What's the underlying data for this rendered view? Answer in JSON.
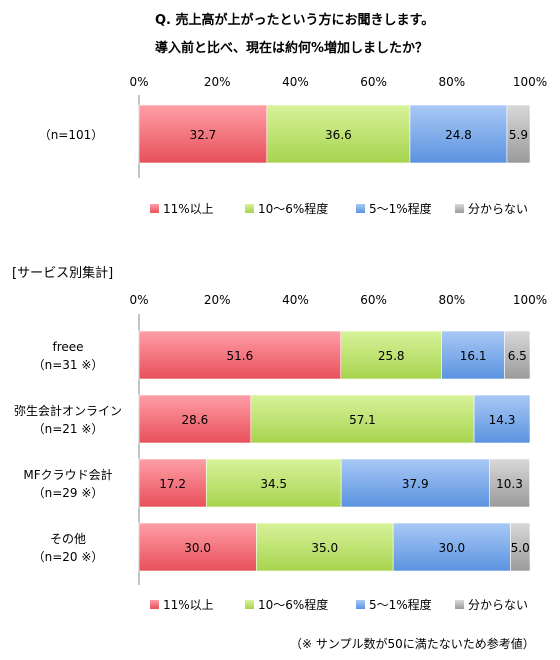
{
  "header": {
    "title_line1": "Q. 売上高が上がったという方にお聞きします。",
    "title_line2": "導入前と比べ、現在は約何%増加しましたか？"
  },
  "colors": {
    "c11": "#e8505b",
    "c10": "#a6d44e",
    "c5": "#5b93e0",
    "cunk": "#a3a3a3"
  },
  "chart_data": [
    {
      "type": "bar",
      "orientation": "horizontal",
      "stacked": true,
      "xlim": [
        0,
        100
      ],
      "x_ticks": [
        "0%",
        "20%",
        "40%",
        "60%",
        "80%",
        "100%"
      ],
      "grid": false,
      "legend_position": "bottom",
      "categories": [
        "（n=101）"
      ],
      "series": [
        {
          "name": "11%以上",
          "values": [
            32.7
          ]
        },
        {
          "name": "10～6%程度",
          "values": [
            36.6
          ]
        },
        {
          "name": "5～1%程度",
          "values": [
            24.8
          ]
        },
        {
          "name": "分からない",
          "values": [
            5.9
          ]
        }
      ],
      "value_labels": [
        [
          "32.7",
          "36.6",
          "24.8",
          "5.9"
        ]
      ]
    },
    {
      "type": "bar",
      "orientation": "horizontal",
      "stacked": true,
      "title": "[サービス別集計]",
      "xlim": [
        0,
        100
      ],
      "x_ticks": [
        "0%",
        "20%",
        "40%",
        "60%",
        "80%",
        "100%"
      ],
      "grid": false,
      "legend_position": "bottom",
      "categories": [
        {
          "line1": "freee",
          "line2": "（n=31 ※）"
        },
        {
          "line1": "弥生会計オンライン",
          "line2": "（n=21 ※）"
        },
        {
          "line1": "MFクラウド会計",
          "line2": "（n=29 ※）"
        },
        {
          "line1": "その他",
          "line2": "（n=20 ※）"
        }
      ],
      "series": [
        {
          "name": "11%以上",
          "values": [
            51.6,
            28.6,
            17.2,
            30.0
          ]
        },
        {
          "name": "10～6%程度",
          "values": [
            25.8,
            57.1,
            34.5,
            35.0
          ]
        },
        {
          "name": "5～1%程度",
          "values": [
            16.1,
            14.3,
            37.9,
            30.0
          ]
        },
        {
          "name": "分からない",
          "values": [
            6.5,
            0,
            10.3,
            5.0
          ]
        }
      ],
      "value_labels": [
        [
          "51.6",
          "25.8",
          "16.1",
          "6.5"
        ],
        [
          "28.6",
          "57.1",
          "14.3",
          ""
        ],
        [
          "17.2",
          "34.5",
          "37.9",
          "10.3"
        ],
        [
          "30.0",
          "35.0",
          "30.0",
          "5.0"
        ]
      ]
    }
  ],
  "footnote": "（※ サンプル数が50に満たないため参考値）"
}
